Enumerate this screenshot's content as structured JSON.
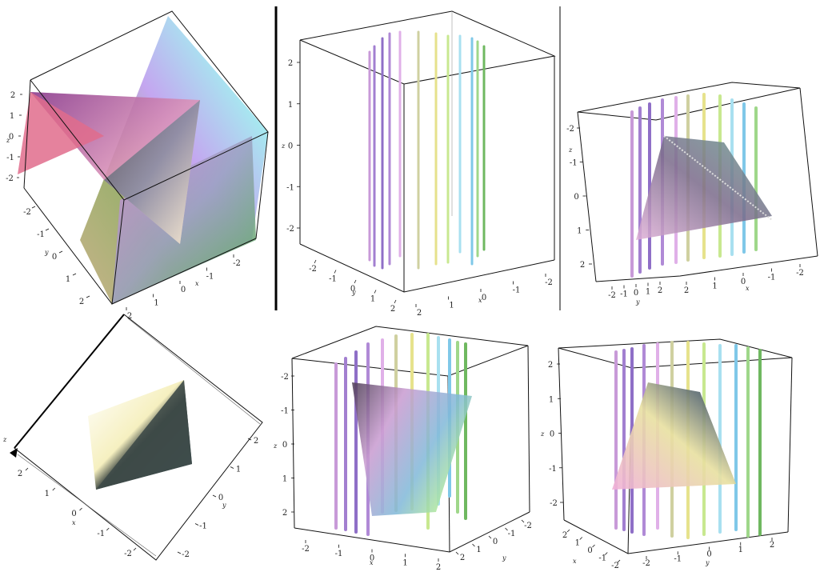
{
  "panels": [
    {
      "id": "top-left",
      "axis_labels": {
        "x": "x",
        "y": "y",
        "z": "z"
      },
      "z_ticks": [
        "2",
        "1",
        "0",
        "-1",
        "-2"
      ],
      "y_ticks": [
        "-2",
        "-1",
        "0",
        "1",
        "2"
      ],
      "x_ticks": [
        "2",
        "1",
        "0",
        "-1",
        "-2"
      ]
    },
    {
      "id": "top-middle",
      "axis_labels": {
        "x": "x",
        "y": "y",
        "z": "z"
      },
      "z_ticks": [
        "2",
        "1",
        "0",
        "-1",
        "-2"
      ],
      "y_ticks": [
        "-2",
        "-1",
        "0",
        "1",
        "2"
      ],
      "x_ticks": [
        "2",
        "1",
        "0",
        "-1",
        "-2"
      ],
      "line_colors": [
        "#c89ad8",
        "#a27fd0",
        "#8f6fc7",
        "#b08ad6",
        "#e0b0e8",
        "#cfd0a0",
        "#e6e28c",
        "#c8e890",
        "#a8e0f0",
        "#7fc8e8",
        "#9fd78a",
        "#6fb860"
      ]
    },
    {
      "id": "top-right",
      "axis_labels": {
        "x": "x",
        "y": "y",
        "z": "z"
      },
      "z_ticks": [
        "-2",
        "-1",
        "0",
        "1",
        "2"
      ],
      "y_ticks": [
        "-2",
        "-1",
        "0",
        "1",
        "2"
      ],
      "x_ticks": [
        "2",
        "1",
        "0",
        "-1",
        "-2"
      ]
    },
    {
      "id": "bottom-left",
      "axis_labels": {
        "x": "x",
        "y": "y",
        "z": "z"
      },
      "x_ticks": [
        "2",
        "1",
        "0",
        "-1",
        "-2"
      ],
      "y_ticks": [
        "2",
        "1",
        "0",
        "-1",
        "-2"
      ]
    },
    {
      "id": "bottom-middle",
      "axis_labels": {
        "x": "x",
        "y": "y",
        "z": "z"
      },
      "z_ticks": [
        "-2",
        "-1",
        "0",
        "1",
        "2"
      ],
      "x_ticks": [
        "-2",
        "-1",
        "0",
        "1",
        "2"
      ],
      "y_ticks": [
        "2",
        "1",
        "0",
        "-1",
        "-2"
      ]
    },
    {
      "id": "bottom-right",
      "axis_labels": {
        "x": "x",
        "y": "y",
        "z": "z"
      },
      "z_ticks": [
        "2",
        "1",
        "0",
        "-1",
        "-2"
      ],
      "x_ticks": [
        "2",
        "1",
        "0",
        "-1",
        "-2"
      ],
      "y_ticks": [
        "-2",
        "-1",
        "0",
        "1",
        "2"
      ]
    }
  ]
}
